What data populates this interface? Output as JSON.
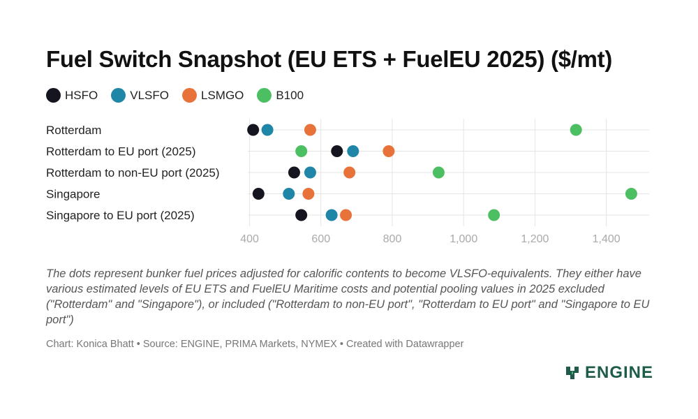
{
  "title": "Fuel Switch Snapshot (EU ETS + FuelEU 2025) ($/mt)",
  "notes": "The dots represent bunker fuel prices adjusted for calorific contents to become VLSFO-equivalents. They either have various estimated levels of EU ETS and FuelEU Maritime costs and potential pooling values in 2025 excluded (\"Rotterdam\" and \"Singapore\"), or included (\"Rotterdam to non-EU port\", \"Rotterdam to EU port\" and \"Singapore to EU port\")",
  "source": "Chart: Konica Bhatt • Source: ENGINE, PRIMA Markets, NYMEX • Created with Datawrapper",
  "logo": {
    "text": "ENGINE"
  },
  "colors": {
    "HSFO": "#15151f",
    "VLSFO": "#1f86a8",
    "LSMGO": "#e8733a",
    "B100": "#4cbf63"
  },
  "chart_data": {
    "type": "scatter",
    "orientation": "horizontal dot plot",
    "title": "Fuel Switch Snapshot (EU ETS + FuelEU 2025) ($/mt)",
    "categories": [
      "Rotterdam",
      "Rotterdam to EU port (2025)",
      "Rotterdam to non-EU port (2025)",
      "Singapore",
      "Singapore to EU port (2025)"
    ],
    "xlim": [
      395,
      1520
    ],
    "xticks": [
      400,
      600,
      800,
      1000,
      1200,
      1400
    ],
    "xtick_labels": [
      "400",
      "600",
      "800",
      "1,000",
      "1,200",
      "1,400"
    ],
    "grid": true,
    "legend_position": "top-left",
    "series": [
      {
        "name": "HSFO",
        "values": [
          410,
          645,
          525,
          425,
          545
        ]
      },
      {
        "name": "VLSFO",
        "values": [
          450,
          690,
          570,
          510,
          630
        ]
      },
      {
        "name": "LSMGO",
        "values": [
          570,
          790,
          680,
          565,
          670
        ]
      },
      {
        "name": "B100",
        "values": [
          1315,
          545,
          930,
          1470,
          1085
        ]
      }
    ]
  }
}
